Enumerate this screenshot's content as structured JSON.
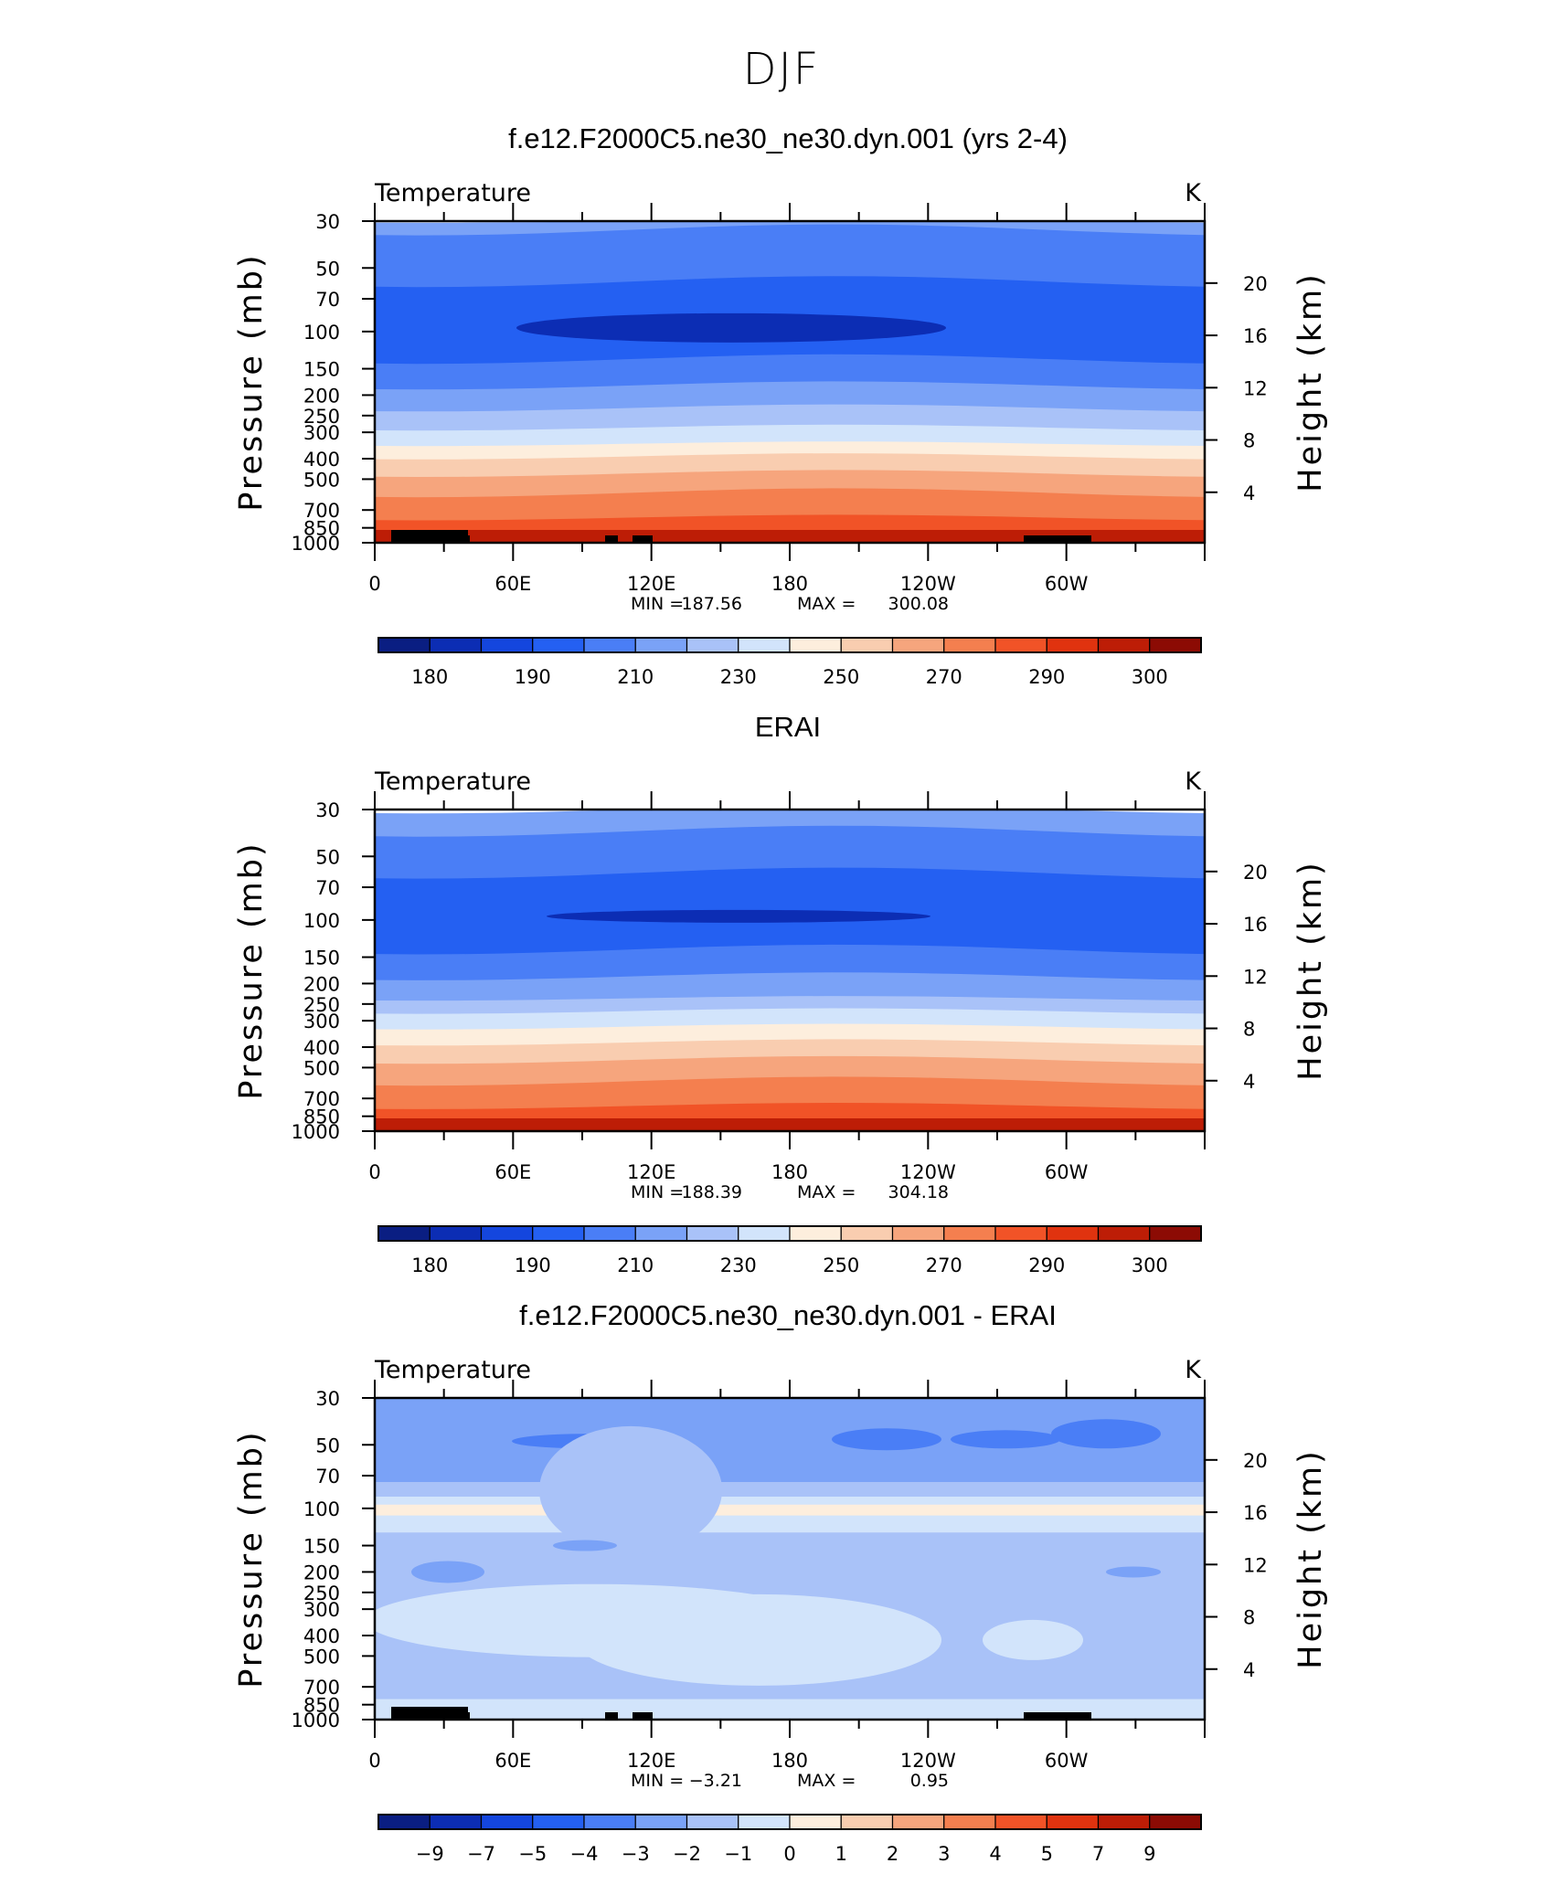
{
  "main_title": "DJF",
  "chart_data": [
    {
      "type": "heatmap",
      "title": "f.e12.F2000C5.ne30_ne30.dyn.001 (yrs 2-4)",
      "subtitle_left": "Temperature",
      "subtitle_right": "K",
      "ylabel": "Pressure (mb)",
      "ylabel_right": "Height (km)",
      "x_ticks": [
        "0",
        "60E",
        "120E",
        "180",
        "120W",
        "60W"
      ],
      "y_ticks": [
        "30",
        "50",
        "70",
        "100",
        "150",
        "200",
        "250",
        "300",
        "400",
        "500",
        "700",
        "850",
        "1000"
      ],
      "y_ticks_right": [
        "20",
        "16",
        "12",
        "8",
        "4"
      ],
      "stats": {
        "min_label": "MIN =",
        "min": "187.56",
        "max_label": "MAX =",
        "max": "300.08"
      },
      "levels": [
        "180",
        "190",
        "210",
        "230",
        "250",
        "270",
        "290",
        "300"
      ],
      "level_colors": [
        "#0a1e82",
        "#0c2db4",
        "#1446de",
        "#2460f2",
        "#4a7ef6",
        "#7aa2f7",
        "#a9c2f8",
        "#d2e4fb",
        "#fdeedd",
        "#f9cdb0",
        "#f6a57d",
        "#f47f4f",
        "#f15327",
        "#e0330f",
        "#bd1d06",
        "#8c0b04"
      ],
      "bands": [
        {
          "p": 30,
          "c": "#7aa2f7"
        },
        {
          "p": 33,
          "c": "#4a7ef6"
        },
        {
          "p": 58,
          "c": "#2460f2"
        },
        {
          "p": 135,
          "c": "#4a7ef6"
        },
        {
          "p": 180,
          "c": "#7aa2f7"
        },
        {
          "p": 230,
          "c": "#a9c2f8"
        },
        {
          "p": 285,
          "c": "#d2e4fb"
        },
        {
          "p": 340,
          "c": "#fdeedd"
        },
        {
          "p": 390,
          "c": "#f9cdb0"
        },
        {
          "p": 470,
          "c": "#f6a57d"
        },
        {
          "p": 580,
          "c": "#f47f4f"
        },
        {
          "p": 760,
          "c": "#f15327"
        },
        {
          "p": 900,
          "c": "#e0330f"
        }
      ]
    },
    {
      "type": "heatmap",
      "title": "ERAI",
      "subtitle_left": "Temperature",
      "subtitle_right": "K",
      "ylabel": "Pressure (mb)",
      "ylabel_right": "Height (km)",
      "x_ticks": [
        "0",
        "60E",
        "120E",
        "180",
        "120W",
        "60W"
      ],
      "y_ticks": [
        "30",
        "50",
        "70",
        "100",
        "150",
        "200",
        "250",
        "300",
        "400",
        "500",
        "700",
        "850",
        "1000"
      ],
      "y_ticks_right": [
        "20",
        "16",
        "12",
        "8",
        "4"
      ],
      "stats": {
        "min_label": "MIN =",
        "min": "188.39",
        "max_label": "MAX =",
        "max": "304.18"
      },
      "levels": [
        "180",
        "190",
        "210",
        "230",
        "250",
        "270",
        "290",
        "300"
      ],
      "level_colors": [
        "#0a1e82",
        "#0c2db4",
        "#1446de",
        "#2460f2",
        "#4a7ef6",
        "#7aa2f7",
        "#a9c2f8",
        "#d2e4fb",
        "#fdeedd",
        "#f9cdb0",
        "#f6a57d",
        "#f47f4f",
        "#f15327",
        "#e0330f",
        "#bd1d06",
        "#8c0b04"
      ],
      "bands": [
        {
          "p": 30,
          "c": "#7aa2f7"
        },
        {
          "p": 38,
          "c": "#4a7ef6"
        },
        {
          "p": 60,
          "c": "#2460f2"
        },
        {
          "p": 138,
          "c": "#4a7ef6"
        },
        {
          "p": 185,
          "c": "#7aa2f7"
        },
        {
          "p": 235,
          "c": "#a9c2f8"
        },
        {
          "p": 270,
          "c": "#d2e4fb"
        },
        {
          "p": 320,
          "c": "#fdeedd"
        },
        {
          "p": 380,
          "c": "#f9cdb0"
        },
        {
          "p": 460,
          "c": "#f6a57d"
        },
        {
          "p": 580,
          "c": "#f47f4f"
        },
        {
          "p": 760,
          "c": "#f15327"
        },
        {
          "p": 920,
          "c": "#e0330f"
        }
      ]
    },
    {
      "type": "heatmap",
      "title": "f.e12.F2000C5.ne30_ne30.dyn.001 - ERAI",
      "subtitle_left": "Temperature",
      "subtitle_right": "K",
      "ylabel": "Pressure (mb)",
      "ylabel_right": "Height (km)",
      "x_ticks": [
        "0",
        "60E",
        "120E",
        "180",
        "120W",
        "60W"
      ],
      "y_ticks": [
        "30",
        "50",
        "70",
        "100",
        "150",
        "200",
        "250",
        "300",
        "400",
        "500",
        "700",
        "850",
        "1000"
      ],
      "y_ticks_right": [
        "20",
        "16",
        "12",
        "8",
        "4"
      ],
      "stats": {
        "min_label": "MIN =",
        "min": "−3.21",
        "max_label": "MAX =",
        "max": "0.95"
      },
      "levels": [
        "−9",
        "−7",
        "−5",
        "−4",
        "−3",
        "−2",
        "−1",
        "0",
        "1",
        "2",
        "3",
        "4",
        "5",
        "7",
        "9"
      ],
      "level_colors": [
        "#0a1e82",
        "#0c2db4",
        "#1446de",
        "#2460f2",
        "#4a7ef6",
        "#7aa2f7",
        "#a9c2f8",
        "#d2e4fb",
        "#fdeedd",
        "#f9cdb0",
        "#f6a57d",
        "#f47f4f",
        "#f15327",
        "#e0330f",
        "#bd1d06",
        "#8c0b04"
      ],
      "bands": [
        {
          "p": 30,
          "c": "#7aa2f7"
        },
        {
          "p": 75,
          "c": "#a9c2f8"
        },
        {
          "p": 88,
          "c": "#d2e4fb"
        },
        {
          "p": 96,
          "c": "#fdeedd"
        },
        {
          "p": 108,
          "c": "#d2e4fb"
        },
        {
          "p": 130,
          "c": "#a9c2f8"
        }
      ]
    }
  ]
}
